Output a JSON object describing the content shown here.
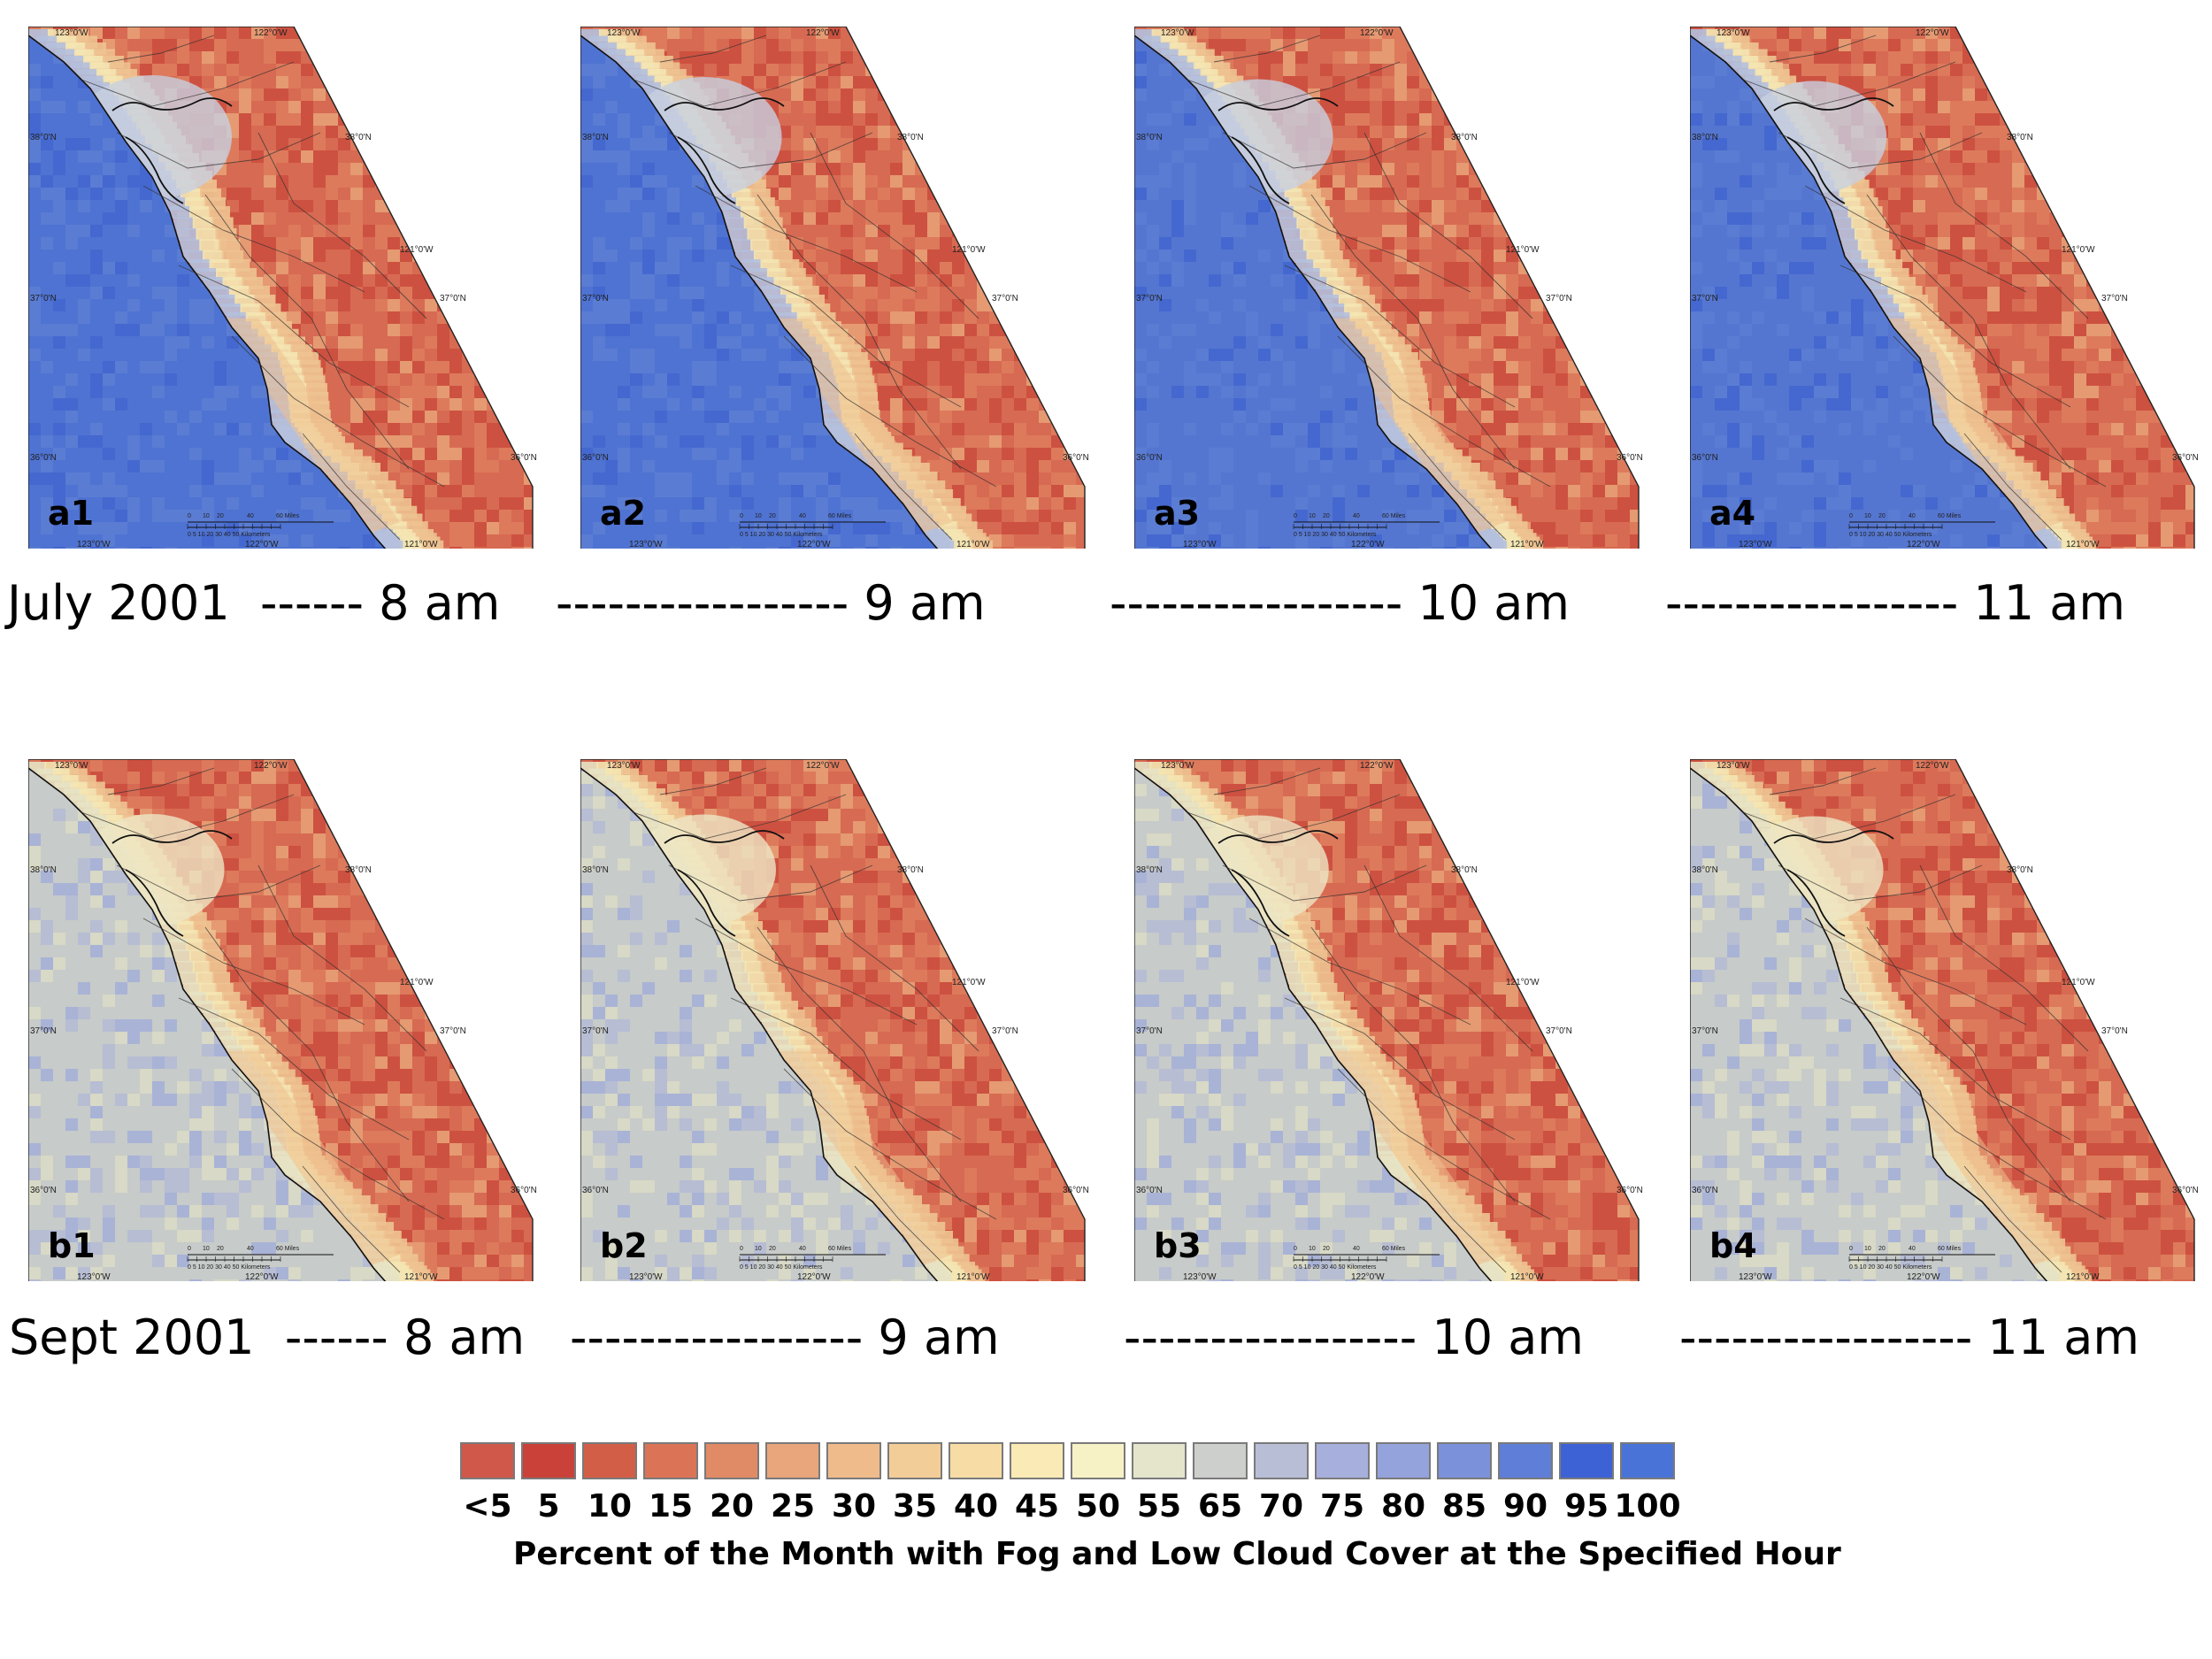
{
  "panels": [
    {
      "id": "a1",
      "label": "a1",
      "row": 0,
      "col": 0,
      "fog": 1.0
    },
    {
      "id": "a2",
      "label": "a2",
      "row": 0,
      "col": 1,
      "fog": 0.92
    },
    {
      "id": "a3",
      "label": "a3",
      "row": 0,
      "col": 2,
      "fog": 0.82
    },
    {
      "id": "a4",
      "label": "a4",
      "row": 0,
      "col": 3,
      "fog": 0.74
    },
    {
      "id": "b1",
      "label": "b1",
      "row": 1,
      "col": 0,
      "fog": 0.72
    },
    {
      "id": "b2",
      "label": "b2",
      "row": 1,
      "col": 1,
      "fog": 0.7
    },
    {
      "id": "b3",
      "label": "b3",
      "row": 1,
      "col": 2,
      "fog": 0.66
    },
    {
      "id": "b4",
      "label": "b4",
      "row": 1,
      "col": 3,
      "fog": 0.62
    }
  ],
  "graticule": {
    "top": [
      "123°0'W",
      "122°0'W"
    ],
    "bottom": [
      "123°0'W",
      "122°0'W",
      "121°0'W"
    ],
    "left": [
      "38°0'N",
      "37°0'N",
      "36°0'N"
    ],
    "right": [
      "38°0'N",
      "121°0'W",
      "37°0'N",
      "36°0'N"
    ]
  },
  "scale": {
    "miles": [
      "0",
      "10",
      "20",
      "40",
      "60 Miles"
    ],
    "km": "0 5 10  20  30  40  50 Kilometers"
  },
  "captions": {
    "row_a": [
      "July 2001  ------ 8 am",
      "----------------- 9 am",
      "----------------- 10 am",
      "----------------- 11 am"
    ],
    "row_b": [
      "Sept 2001  ------ 8 am",
      "----------------- 9 am",
      "----------------- 10 am",
      "----------------- 11 am"
    ]
  },
  "legend": {
    "title": "Percent of the Month with Fog and Low Cloud Cover at the Specified Hour",
    "labels": [
      "<5",
      "5",
      "10",
      "15",
      "20",
      "25",
      "30",
      "35",
      "40",
      "45",
      "50",
      "55",
      "65",
      "70",
      "75",
      "80",
      "85",
      "90",
      "95",
      "100"
    ],
    "colors": [
      "#d0584a",
      "#c94138",
      "#d35e47",
      "#db7457",
      "#e08a66",
      "#e9a57b",
      "#efbb8b",
      "#f3cd98",
      "#f7dda5",
      "#faeab5",
      "#f7f1c6",
      "#e4e5cb",
      "#cdcfcc",
      "#b9bed7",
      "#a7b0dc",
      "#94a3dc",
      "#7b91da",
      "#5f7ed8",
      "#3d62d6",
      "#4a73d7"
    ]
  }
}
